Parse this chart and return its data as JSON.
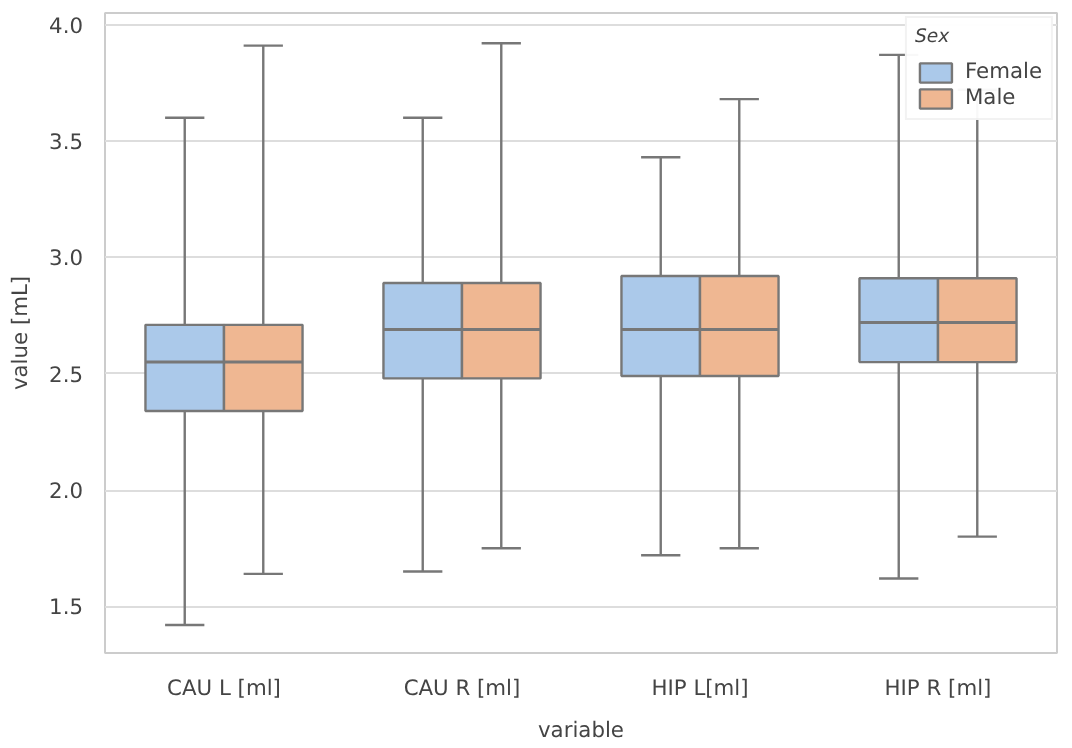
{
  "chart_data": {
    "type": "box",
    "xlabel": "variable",
    "ylabel": "value [mL]",
    "legend_title": "Sex",
    "categories": [
      "CAU L [ml]",
      "CAU R [ml]",
      "HIP L[ml]",
      "HIP R [ml]"
    ],
    "ylim": [
      1.3,
      4.05
    ],
    "yticks": [
      {
        "value": 1.5,
        "label": "1.5"
      },
      {
        "value": 2.0,
        "label": "2.0"
      },
      {
        "value": 2.5,
        "label": "2.5"
      },
      {
        "value": 3.0,
        "label": "3.0"
      },
      {
        "value": 3.5,
        "label": "3.5"
      },
      {
        "value": 4.0,
        "label": "4.0"
      }
    ],
    "grid": "y",
    "legend": "top right",
    "series": [
      {
        "name": "Female",
        "color": "#abc9ea",
        "boxes": [
          {
            "low": 1.42,
            "q1": 2.34,
            "median": 2.55,
            "q3": 2.71,
            "high": 3.6
          },
          {
            "low": 1.65,
            "q1": 2.48,
            "median": 2.69,
            "q3": 2.89,
            "high": 3.6
          },
          {
            "low": 1.72,
            "q1": 2.49,
            "median": 2.69,
            "q3": 2.92,
            "high": 3.43
          },
          {
            "low": 1.62,
            "q1": 2.55,
            "median": 2.72,
            "q3": 2.91,
            "high": 3.87
          }
        ]
      },
      {
        "name": "Male",
        "color": "#efb792",
        "boxes": [
          {
            "low": 1.64,
            "q1": 2.34,
            "median": 2.55,
            "q3": 2.71,
            "high": 3.91
          },
          {
            "low": 1.75,
            "q1": 2.48,
            "median": 2.69,
            "q3": 2.89,
            "high": 3.92
          },
          {
            "low": 1.75,
            "q1": 2.49,
            "median": 2.69,
            "q3": 2.92,
            "high": 3.68
          },
          {
            "low": 1.8,
            "q1": 2.55,
            "median": 2.72,
            "q3": 2.91,
            "high": 3.72
          }
        ]
      }
    ]
  }
}
